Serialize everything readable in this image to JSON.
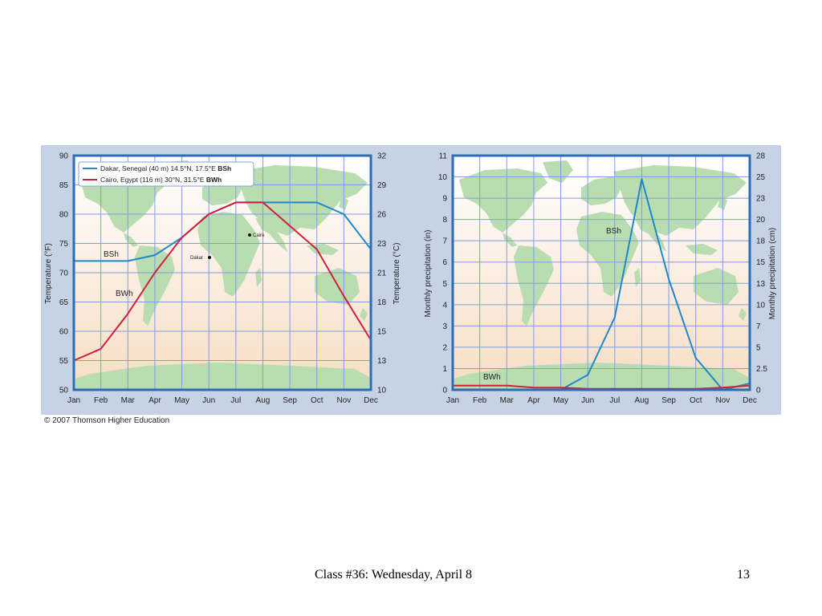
{
  "slide": {
    "footer_title": "Class #36: Wednesday, April 8",
    "page_number": "13",
    "copyright": "© 2007 Thomson Higher Education"
  },
  "colors": {
    "dakar": "#1e88c9",
    "cairo": "#d11f3b",
    "grid": "#7f9ee0",
    "frame": "#2a6db5",
    "land": "#b9dcb1",
    "ocean_top": "#ffffff",
    "ocean_bottom": "#f6ddc4",
    "panel": "#c6d3e6"
  },
  "chart_data": [
    {
      "type": "line",
      "months": [
        "Jan",
        "Feb",
        "Mar",
        "Apr",
        "May",
        "Jun",
        "Jul",
        "Aug",
        "Sep",
        "Oct",
        "Nov",
        "Dec"
      ],
      "ylabel": "Temperature (°F)",
      "y2label": "Temperature (°C)",
      "ylim": [
        50,
        90
      ],
      "yticks": [
        50,
        55,
        60,
        65,
        70,
        75,
        80,
        85,
        90
      ],
      "y2ticks": [
        "10",
        "13",
        "15",
        "18",
        "21",
        "23",
        "26",
        "29",
        "32"
      ],
      "grid": true,
      "legend": {
        "position": "top-left",
        "entries": [
          {
            "text": "Dakar, Senegal (40 m) 14.5°N, 17.5°E ",
            "bold": "BSh"
          },
          {
            "text": "Cairo, Egypt (116 m) 30°N, 31.5°E ",
            "bold": "BWh"
          }
        ]
      },
      "series": [
        {
          "name": "Dakar, Senegal (40 m) 14.5°N, 17.5°E BSh",
          "values": [
            72,
            72,
            72,
            73,
            76,
            80,
            82,
            82,
            82,
            82,
            80,
            74
          ]
        },
        {
          "name": "Cairo, Egypt (116 m) 30°N, 31.5°E BWh",
          "values": [
            55,
            57,
            63,
            70,
            76,
            80,
            82,
            82,
            78,
            74,
            66,
            58.5
          ]
        }
      ],
      "annotations": [
        "BSh",
        "BWh",
        "Dakar",
        "Cairo"
      ]
    },
    {
      "type": "line",
      "months": [
        "Jan",
        "Feb",
        "Mar",
        "Apr",
        "May",
        "Jun",
        "Jul",
        "Aug",
        "Sep",
        "Oct",
        "Nov",
        "Dec"
      ],
      "ylabel": "Monthly precipitation (in)",
      "y2label": "Monthly precipitation (cm)",
      "ylim": [
        0,
        11
      ],
      "yticks": [
        0,
        1,
        2,
        3,
        4,
        5,
        6,
        7,
        8,
        9,
        10,
        11
      ],
      "y2ticks": [
        "0",
        "2.5",
        "5",
        "7",
        "10",
        "13",
        "15",
        "18",
        "20",
        "23",
        "25",
        "28"
      ],
      "grid": true,
      "series": [
        {
          "name": "BSh",
          "values": [
            0,
            0,
            0,
            0,
            0,
            0.7,
            3.4,
            9.9,
            5.2,
            1.5,
            0,
            0.3
          ]
        },
        {
          "name": "BWh",
          "values": [
            0.2,
            0.2,
            0.2,
            0.1,
            0.1,
            0.05,
            0.05,
            0.05,
            0.05,
            0.05,
            0.1,
            0.2
          ]
        }
      ],
      "annotations": [
        "BSh",
        "BWh"
      ]
    }
  ]
}
